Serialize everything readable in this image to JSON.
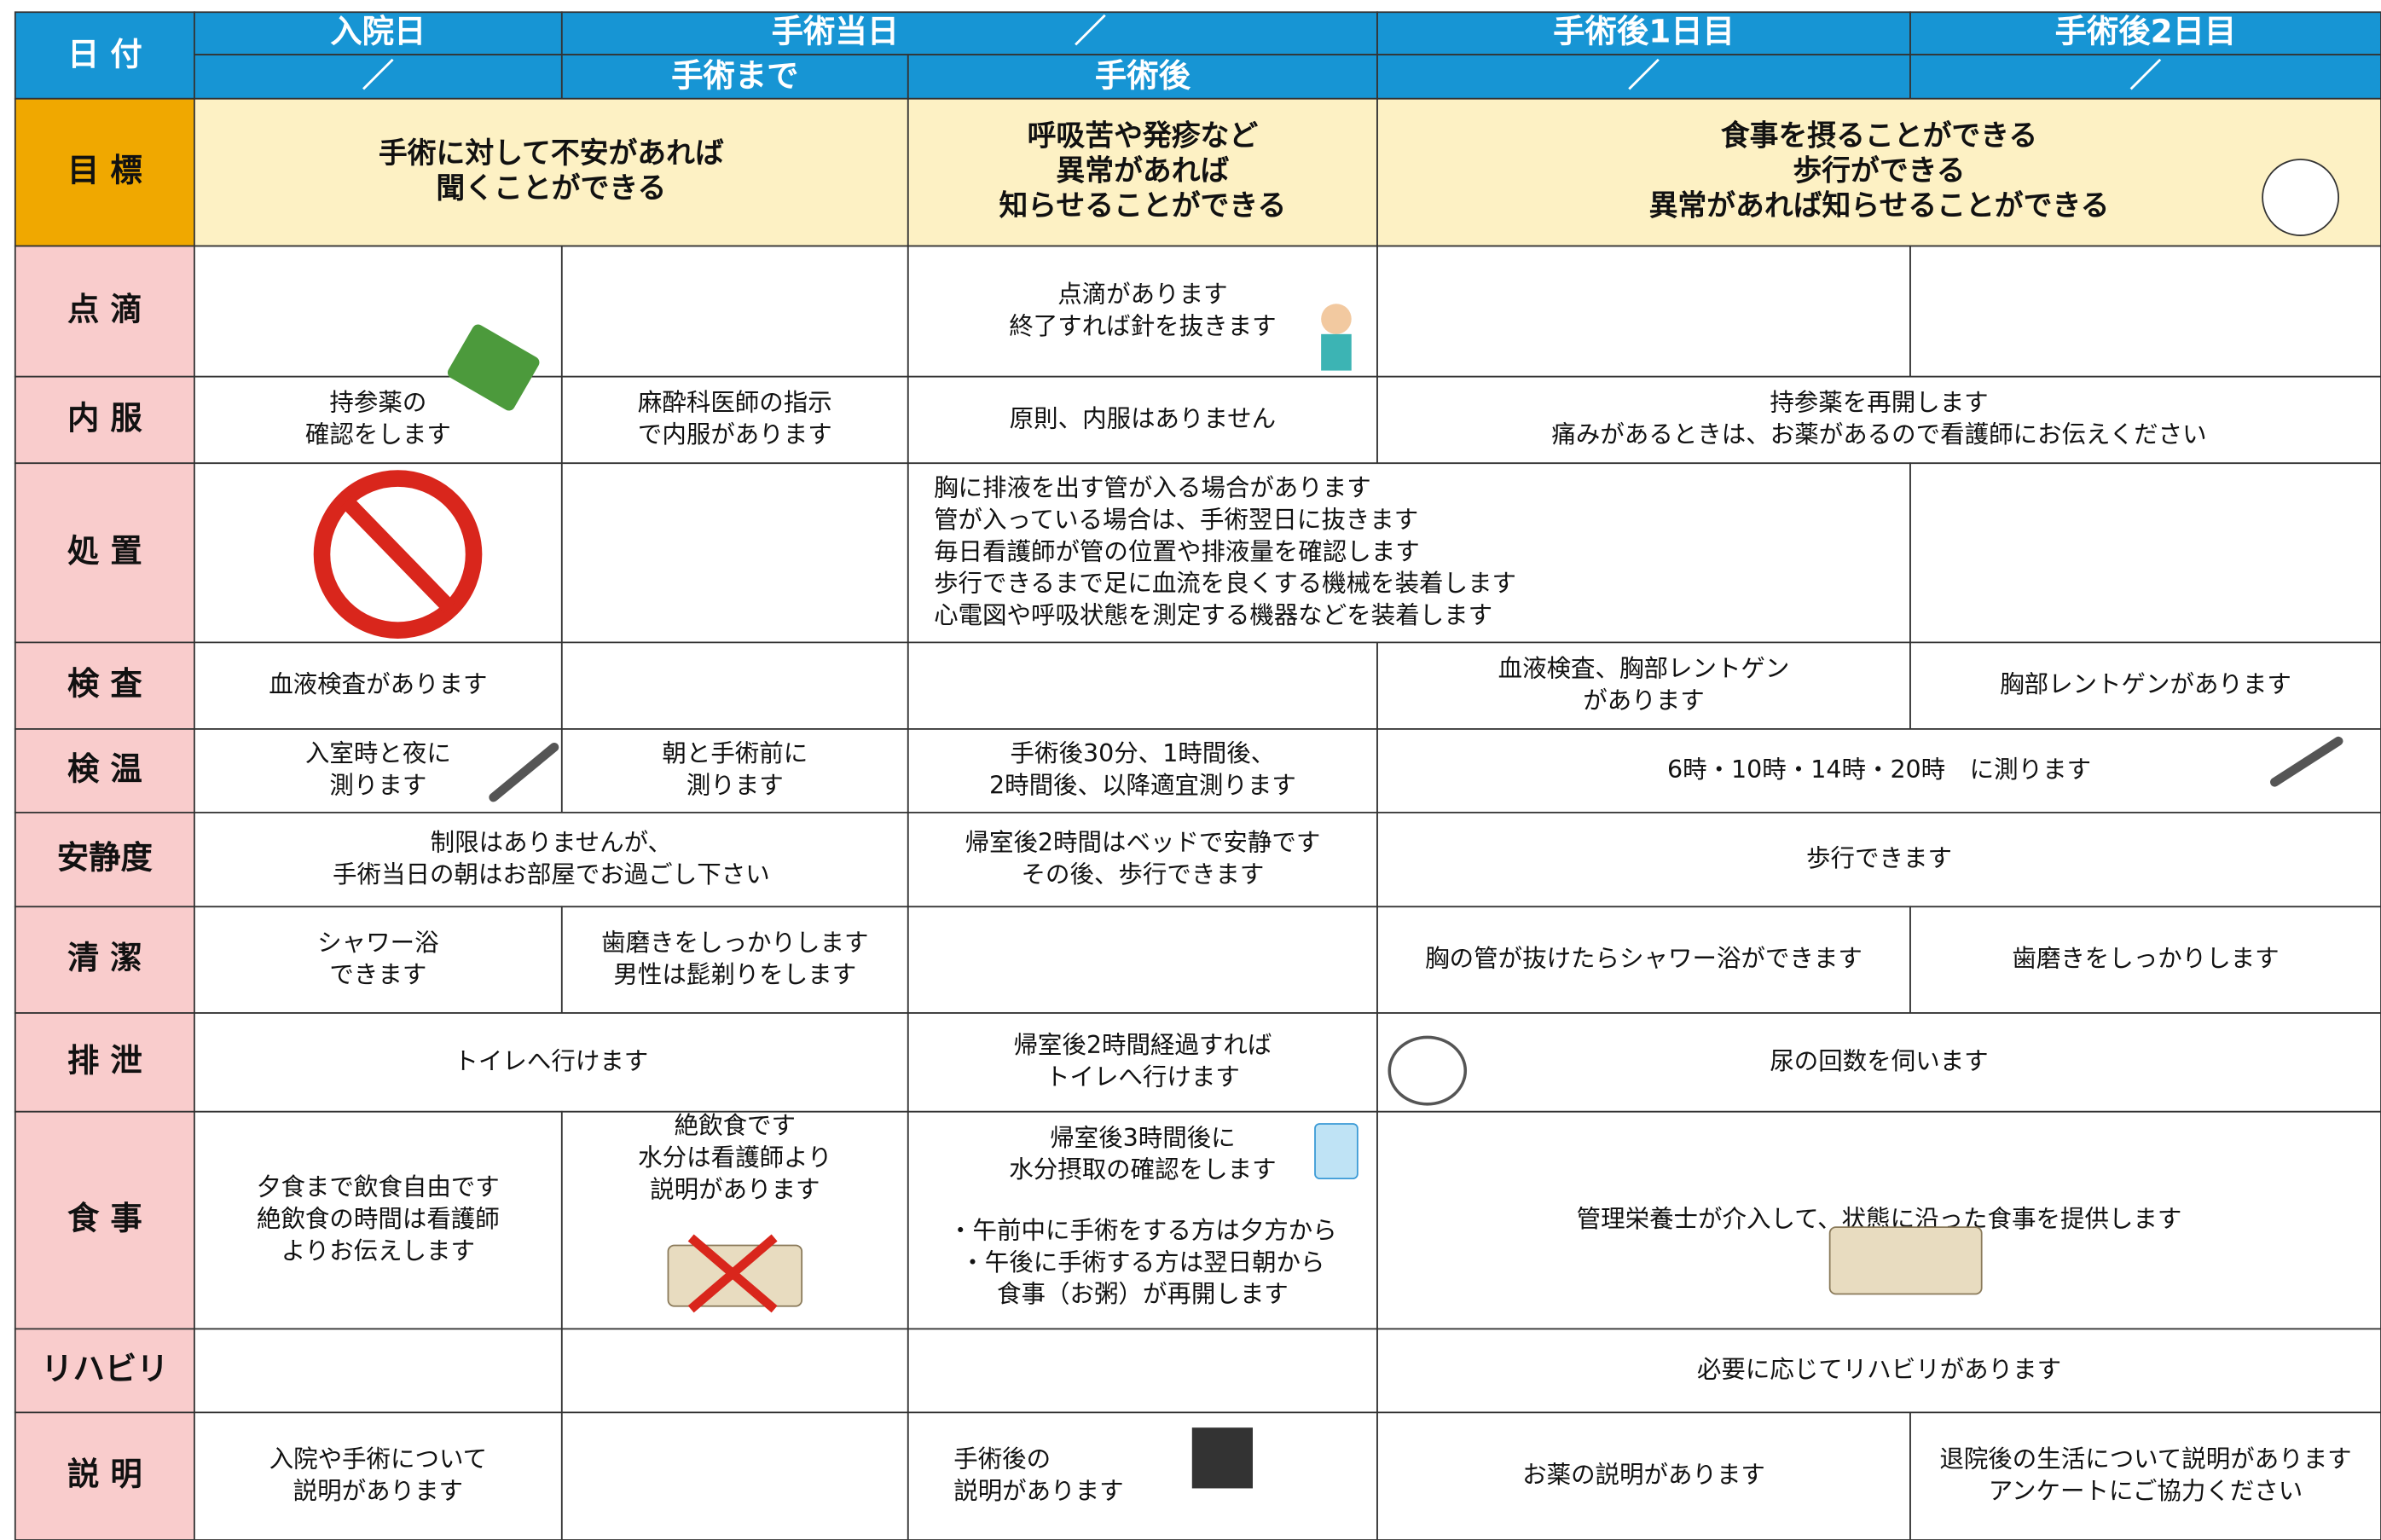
{
  "header": {
    "date_label": "日 付",
    "row1": [
      "入院日",
      "手術当日",
      "／",
      "手術後1日目",
      "手術後2日目"
    ],
    "row2": [
      "／",
      "手術まで",
      "手術後",
      "／",
      "／"
    ]
  },
  "rows": [
    {
      "label": "目 標",
      "cells": [
        {
          "lines": [
            "手術に対して不安があれば",
            "聞くことができる"
          ]
        },
        {
          "lines": [
            "呼吸苦や発疹など",
            "異常があれば",
            "知らせることができる"
          ]
        },
        {
          "lines": [
            "食事を摂ることができる",
            "歩行ができる",
            "異常があれば知らせることができる"
          ]
        }
      ]
    },
    {
      "label": "点 滴",
      "cells": [
        {
          "lines": [
            "点滴があります",
            "終了すれば針を抜きます"
          ]
        }
      ]
    },
    {
      "label": "内 服",
      "cells": [
        {
          "lines": [
            "持参薬の",
            "確認をします"
          ]
        },
        {
          "lines": [
            "麻酔科医師の指示",
            "で内服があります"
          ]
        },
        {
          "lines": [
            "原則、内服はありません"
          ]
        },
        {
          "lines": [
            "持参薬を再開します",
            "痛みがあるときは、お薬があるので看護師にお伝えください"
          ]
        }
      ]
    },
    {
      "label": "処 置",
      "cells": [
        {
          "lines": [
            "胸に排液を出す管が入る場合があります",
            "管が入っている場合は、手術翌日に抜きます",
            "毎日看護師が管の位置や排液量を確認します",
            "歩行できるまで足に血流を良くする機械を装着します",
            "心電図や呼吸状態を測定する機器などを装着します"
          ]
        }
      ]
    },
    {
      "label": "検 査",
      "cells": [
        {
          "lines": [
            "血液検査があります"
          ]
        },
        {
          "lines": [
            "血液検査、胸部レントゲン",
            "があります"
          ]
        },
        {
          "lines": [
            "胸部レントゲンがあります"
          ]
        }
      ]
    },
    {
      "label": "検 温",
      "cells": [
        {
          "lines": [
            "入室時と夜に",
            "測ります"
          ]
        },
        {
          "lines": [
            "朝と手術前に",
            "測ります"
          ]
        },
        {
          "lines": [
            "手術後30分、1時間後、",
            "2時間後、以降適宜測ります"
          ]
        },
        {
          "lines": [
            "6時・10時・14時・20時　に測ります"
          ]
        }
      ]
    },
    {
      "label": "安静度",
      "cells": [
        {
          "lines": [
            "制限はありませんが、",
            "手術当日の朝はお部屋でお過ごし下さい"
          ]
        },
        {
          "lines": [
            "帰室後2時間はベッドで安静です",
            "その後、歩行できます"
          ]
        },
        {
          "lines": [
            "歩行できます"
          ]
        }
      ]
    },
    {
      "label": "清 潔",
      "cells": [
        {
          "lines": [
            "シャワー浴",
            "できます"
          ]
        },
        {
          "lines": [
            "歯磨きをしっかりします",
            "男性は髭剃りをします"
          ]
        },
        {
          "lines": [
            "胸の管が抜けたらシャワー浴ができます"
          ]
        },
        {
          "lines": [
            "歯磨きをしっかりします"
          ]
        }
      ]
    },
    {
      "label": "排 泄",
      "cells": [
        {
          "lines": [
            "トイレへ行けます"
          ]
        },
        {
          "lines": [
            "帰室後2時間経過すれば",
            "トイレへ行けます"
          ]
        },
        {
          "lines": [
            "尿の回数を伺います"
          ]
        }
      ]
    },
    {
      "label": "食 事",
      "cells": [
        {
          "lines": [
            "夕食まで飲食自由です",
            "絶飲食の時間は看護師",
            "よりお伝えします"
          ]
        },
        {
          "lines": [
            "絶飲食です",
            "水分は看護師より",
            "説明があります"
          ]
        },
        {
          "lines": [
            "帰室後3時間後に",
            "水分摂取の確認をします",
            "・午前中に手術をする方は夕方から",
            "・午後に手術する方は翌日朝から",
            "食事（お粥）が再開します"
          ]
        },
        {
          "lines": [
            "管理栄養士が介入して、状態に沿った食事を提供します"
          ]
        }
      ]
    },
    {
      "label": "リハビリ",
      "cells": [
        {
          "lines": [
            "必要に応じてリハビリがあります"
          ]
        }
      ]
    },
    {
      "label": "説 明",
      "cells": [
        {
          "lines": [
            "入院や手術について",
            "説明があります"
          ]
        },
        {
          "lines": [
            "手術後の",
            "説明があります"
          ]
        },
        {
          "lines": [
            "お薬の説明があります"
          ]
        },
        {
          "lines": [
            "退院後の生活について説明があります",
            "アンケートにご協力ください"
          ]
        }
      ]
    }
  ]
}
